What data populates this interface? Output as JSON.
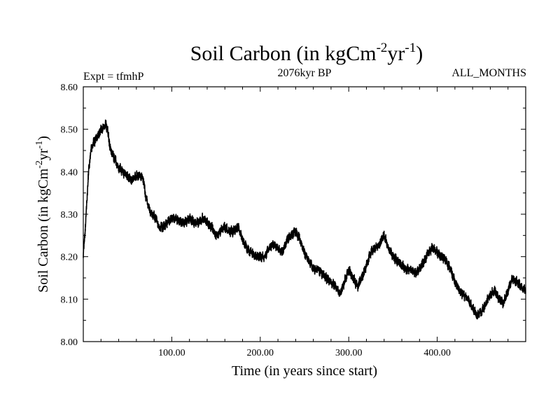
{
  "chart_data": {
    "type": "line",
    "title": {
      "base": "Soil Carbon (in kgCm",
      "sup1": "-2",
      "mid": "yr",
      "sup2": "-1",
      "end": ")"
    },
    "expt_label": "Expt = tfmhP",
    "subtitle": "2076kyr BP",
    "season_label": "ALL_MONTHS",
    "xlabel": "Time (in years since start)",
    "ylabel": {
      "base": "Soil Carbon (in kgCm",
      "sup1": "-2",
      "mid": "yr",
      "sup2": "-1",
      "end": ")"
    },
    "xlim": [
      0,
      500
    ],
    "ylim": [
      8.0,
      8.6
    ],
    "x_ticks": [
      100,
      200,
      300,
      400
    ],
    "x_tick_labels": [
      "100.00",
      "200.00",
      "300.00",
      "400.00"
    ],
    "y_ticks": [
      8.0,
      8.1,
      8.2,
      8.3,
      8.4,
      8.5,
      8.6
    ],
    "y_tick_labels": [
      "8.00",
      "8.10",
      "8.20",
      "8.30",
      "8.40",
      "8.50",
      "8.60"
    ],
    "grid": false,
    "line_color": "#000000",
    "noise_amplitude": 0.009,
    "series": [
      {
        "name": "Soil Carbon",
        "x": [
          0,
          2,
          4,
          6,
          8,
          10,
          12,
          15,
          18,
          20,
          22,
          24,
          26,
          28,
          30,
          33,
          36,
          40,
          45,
          50,
          55,
          60,
          65,
          68,
          70,
          72,
          75,
          78,
          82,
          86,
          90,
          95,
          100,
          105,
          110,
          115,
          120,
          125,
          130,
          135,
          140,
          145,
          150,
          155,
          160,
          165,
          170,
          175,
          180,
          185,
          190,
          195,
          200,
          205,
          210,
          215,
          220,
          225,
          230,
          235,
          240,
          245,
          250,
          255,
          260,
          265,
          270,
          275,
          280,
          285,
          290,
          295,
          300,
          305,
          310,
          315,
          320,
          325,
          330,
          335,
          340,
          345,
          350,
          355,
          360,
          365,
          370,
          375,
          380,
          385,
          390,
          395,
          400,
          405,
          410,
          415,
          420,
          425,
          430,
          435,
          440,
          445,
          450,
          455,
          460,
          465,
          470,
          475,
          480,
          485,
          490,
          495,
          500
        ],
        "values": [
          8.2,
          8.26,
          8.33,
          8.4,
          8.44,
          8.46,
          8.47,
          8.48,
          8.49,
          8.5,
          8.5,
          8.51,
          8.51,
          8.49,
          8.46,
          8.44,
          8.43,
          8.41,
          8.4,
          8.39,
          8.38,
          8.39,
          8.39,
          8.38,
          8.35,
          8.33,
          8.31,
          8.3,
          8.29,
          8.27,
          8.27,
          8.28,
          8.29,
          8.29,
          8.28,
          8.28,
          8.29,
          8.28,
          8.28,
          8.29,
          8.28,
          8.27,
          8.25,
          8.26,
          8.27,
          8.26,
          8.26,
          8.27,
          8.24,
          8.22,
          8.21,
          8.2,
          8.2,
          8.2,
          8.22,
          8.23,
          8.22,
          8.21,
          8.24,
          8.25,
          8.26,
          8.24,
          8.21,
          8.19,
          8.17,
          8.17,
          8.16,
          8.15,
          8.14,
          8.13,
          8.11,
          8.14,
          8.17,
          8.15,
          8.13,
          8.15,
          8.18,
          8.21,
          8.22,
          8.23,
          8.25,
          8.22,
          8.2,
          8.19,
          8.18,
          8.17,
          8.17,
          8.16,
          8.17,
          8.19,
          8.21,
          8.22,
          8.21,
          8.2,
          8.19,
          8.17,
          8.14,
          8.12,
          8.11,
          8.1,
          8.08,
          8.06,
          8.07,
          8.09,
          8.11,
          8.12,
          8.1,
          8.09,
          8.12,
          8.15,
          8.14,
          8.13,
          8.12
        ]
      }
    ]
  }
}
